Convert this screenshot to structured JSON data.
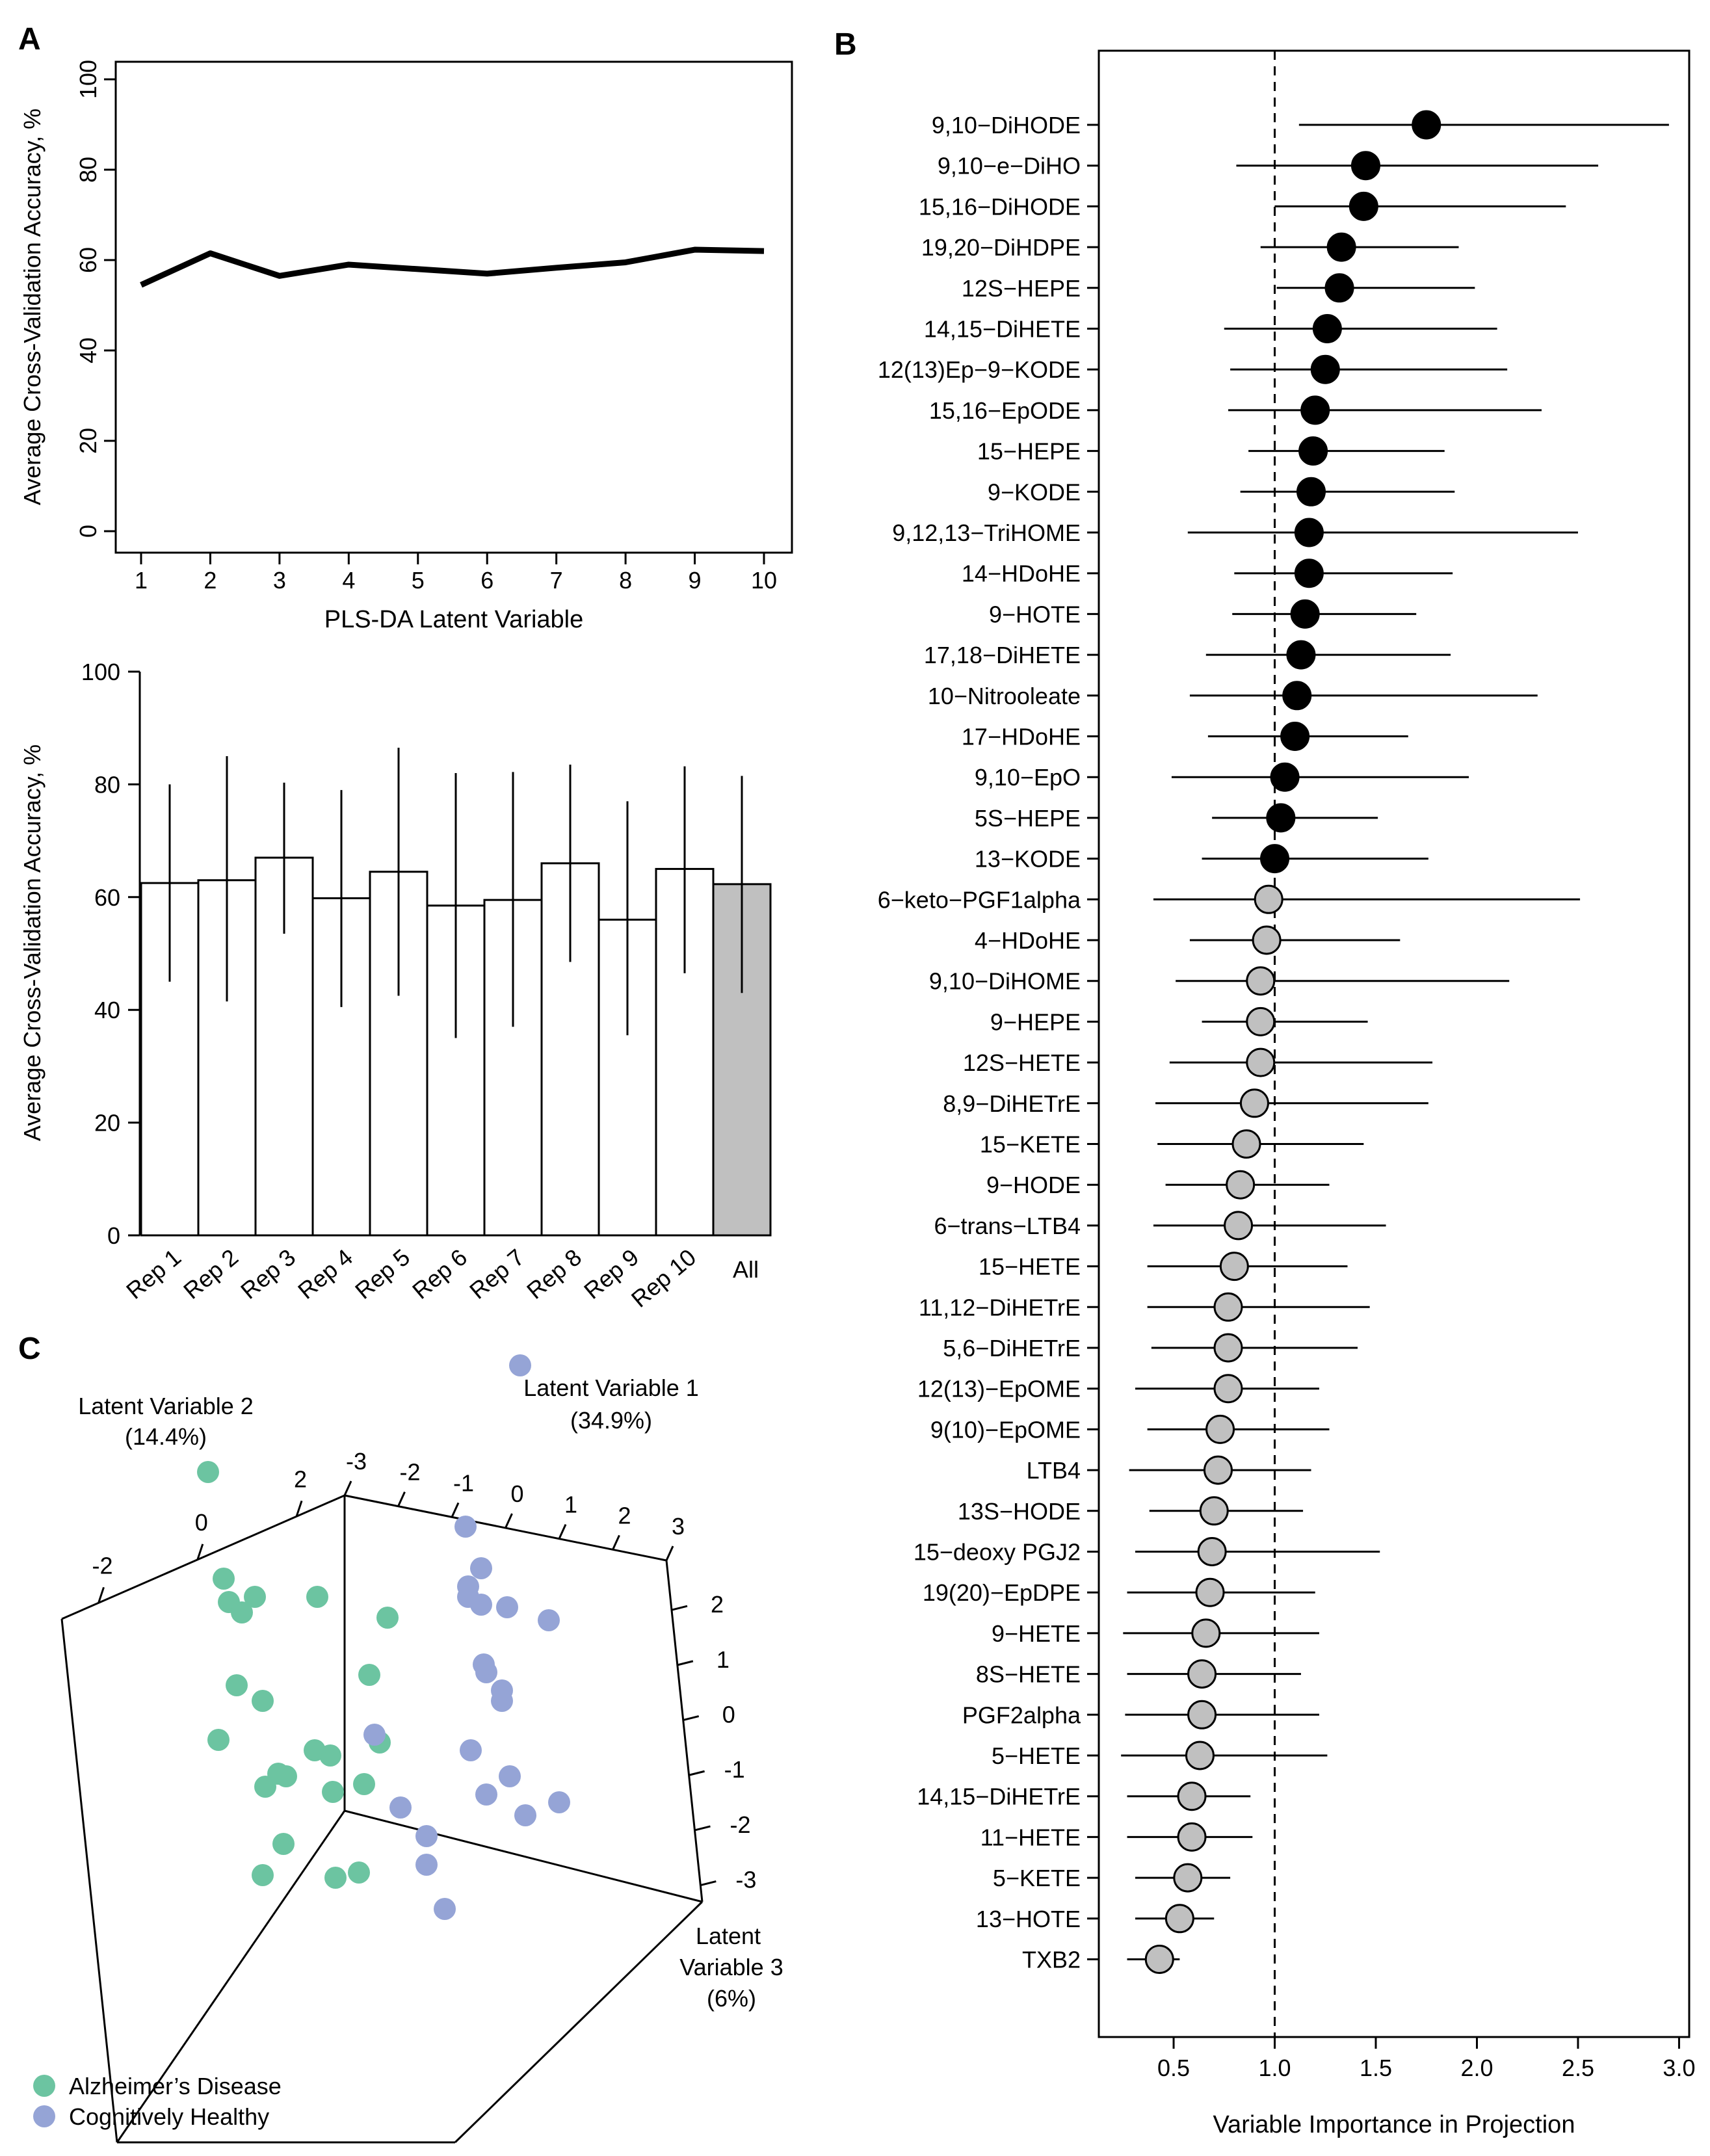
{
  "figure": {
    "panel_labels": [
      "A",
      "B",
      "C"
    ]
  },
  "chart_data": [
    {
      "id": "A-top",
      "type": "line",
      "title": "",
      "xlabel": "PLS-DA Latent Variable",
      "ylabel": "Average Cross-Validation Accuracy, %",
      "x": [
        1,
        2,
        3,
        4,
        5,
        6,
        7,
        8,
        9,
        10
      ],
      "values": [
        54.5,
        61.5,
        56.5,
        59,
        58,
        57,
        58.3,
        59.5,
        62.3,
        62
      ],
      "xticks": [
        "1",
        "2",
        "3",
        "4",
        "5",
        "6",
        "7",
        "8",
        "9",
        "10"
      ],
      "yticks": [
        "0",
        "20",
        "40",
        "60",
        "80",
        "100"
      ],
      "ylim": [
        0,
        100
      ],
      "color": "#000000"
    },
    {
      "id": "A-bottom",
      "type": "bar",
      "xlabel": "",
      "ylabel": "Average Cross-Validation Accuracy, %",
      "categories": [
        "Rep 1",
        "Rep 2",
        "Rep 3",
        "Rep 4",
        "Rep 5",
        "Rep 6",
        "Rep 7",
        "Rep 8",
        "Rep 9",
        "Rep 10",
        "All"
      ],
      "values": [
        62.5,
        63,
        67,
        59.8,
        64.5,
        58.5,
        59.5,
        66,
        56,
        65,
        62.3
      ],
      "error_low": [
        45,
        41.5,
        53.5,
        40.5,
        42.5,
        35,
        37,
        48.5,
        35.5,
        46.5,
        43
      ],
      "error_high": [
        80,
        85,
        80.3,
        79,
        86.5,
        82,
        82.2,
        83.5,
        77,
        83.2,
        81.5
      ],
      "fill": [
        "#ffffff",
        "#ffffff",
        "#ffffff",
        "#ffffff",
        "#ffffff",
        "#ffffff",
        "#ffffff",
        "#ffffff",
        "#ffffff",
        "#ffffff",
        "#c0c0c0"
      ],
      "yticks": [
        "0",
        "20",
        "40",
        "60",
        "80",
        "100"
      ],
      "ylim": [
        0,
        100
      ]
    },
    {
      "id": "B",
      "type": "scatter",
      "subtype": "dot-with-interval",
      "xlabel": "Variable Importance in Projection",
      "xticks": [
        "0.5",
        "1.0",
        "1.5",
        "2.0",
        "2.5",
        "3.0"
      ],
      "xlim": [
        0.13,
        3.05
      ],
      "reference_line": 1.0,
      "colors": {
        "significant": "#000000",
        "non_significant": "#c0c0c0"
      },
      "variables": [
        {
          "name": "9,10−DiHODE",
          "vip": 1.75,
          "lo": 1.12,
          "hi": 2.95,
          "sig": true
        },
        {
          "name": "9,10−e−DiHO",
          "vip": 1.45,
          "lo": 0.81,
          "hi": 2.6,
          "sig": true
        },
        {
          "name": "15,16−DiHODE",
          "vip": 1.44,
          "lo": 1.0,
          "hi": 2.44,
          "sig": true
        },
        {
          "name": "19,20−DiHDPE",
          "vip": 1.33,
          "lo": 0.93,
          "hi": 1.91,
          "sig": true
        },
        {
          "name": "12S−HEPE",
          "vip": 1.32,
          "lo": 1.01,
          "hi": 1.99,
          "sig": true
        },
        {
          "name": "14,15−DiHETE",
          "vip": 1.26,
          "lo": 0.75,
          "hi": 2.1,
          "sig": true
        },
        {
          "name": "12(13)Ep−9−KODE",
          "vip": 1.25,
          "lo": 0.78,
          "hi": 2.15,
          "sig": true
        },
        {
          "name": "15,16−EpODE",
          "vip": 1.2,
          "lo": 0.77,
          "hi": 2.32,
          "sig": true
        },
        {
          "name": "15−HEPE",
          "vip": 1.19,
          "lo": 0.87,
          "hi": 1.84,
          "sig": true
        },
        {
          "name": "9−KODE",
          "vip": 1.18,
          "lo": 0.83,
          "hi": 1.89,
          "sig": true
        },
        {
          "name": "9,12,13−TriHOME",
          "vip": 1.17,
          "lo": 0.57,
          "hi": 2.5,
          "sig": true
        },
        {
          "name": "14−HDoHE",
          "vip": 1.17,
          "lo": 0.8,
          "hi": 1.88,
          "sig": true
        },
        {
          "name": "9−HOTE",
          "vip": 1.15,
          "lo": 0.79,
          "hi": 1.7,
          "sig": true
        },
        {
          "name": "17,18−DiHETE",
          "vip": 1.13,
          "lo": 0.66,
          "hi": 1.87,
          "sig": true
        },
        {
          "name": "10−Nitrooleate",
          "vip": 1.11,
          "lo": 0.58,
          "hi": 2.3,
          "sig": true
        },
        {
          "name": "17−HDoHE",
          "vip": 1.1,
          "lo": 0.67,
          "hi": 1.66,
          "sig": true
        },
        {
          "name": "9,10−EpO",
          "vip": 1.05,
          "lo": 0.49,
          "hi": 1.96,
          "sig": true
        },
        {
          "name": "5S−HEPE",
          "vip": 1.03,
          "lo": 0.69,
          "hi": 1.51,
          "sig": true
        },
        {
          "name": "13−KODE",
          "vip": 1.0,
          "lo": 0.64,
          "hi": 1.76,
          "sig": true
        },
        {
          "name": "6−keto−PGF1alpha",
          "vip": 0.97,
          "lo": 0.4,
          "hi": 2.51,
          "sig": false
        },
        {
          "name": "4−HDoHE",
          "vip": 0.96,
          "lo": 0.58,
          "hi": 1.62,
          "sig": false
        },
        {
          "name": "9,10−DiHOME",
          "vip": 0.93,
          "lo": 0.51,
          "hi": 2.16,
          "sig": false
        },
        {
          "name": "9−HEPE",
          "vip": 0.93,
          "lo": 0.64,
          "hi": 1.46,
          "sig": false
        },
        {
          "name": "12S−HETE",
          "vip": 0.93,
          "lo": 0.48,
          "hi": 1.78,
          "sig": false
        },
        {
          "name": "8,9−DiHETrE",
          "vip": 0.9,
          "lo": 0.41,
          "hi": 1.76,
          "sig": false
        },
        {
          "name": "15−KETE",
          "vip": 0.86,
          "lo": 0.42,
          "hi": 1.44,
          "sig": false
        },
        {
          "name": "9−HODE",
          "vip": 0.83,
          "lo": 0.46,
          "hi": 1.27,
          "sig": false
        },
        {
          "name": "6−trans−LTB4",
          "vip": 0.82,
          "lo": 0.4,
          "hi": 1.55,
          "sig": false
        },
        {
          "name": "15−HETE",
          "vip": 0.8,
          "lo": 0.37,
          "hi": 1.36,
          "sig": false
        },
        {
          "name": "11,12−DiHETrE",
          "vip": 0.77,
          "lo": 0.37,
          "hi": 1.47,
          "sig": false
        },
        {
          "name": "5,6−DiHETrE",
          "vip": 0.77,
          "lo": 0.39,
          "hi": 1.41,
          "sig": false
        },
        {
          "name": "12(13)−EpOME",
          "vip": 0.77,
          "lo": 0.31,
          "hi": 1.22,
          "sig": false
        },
        {
          "name": "9(10)−EpOME",
          "vip": 0.73,
          "lo": 0.37,
          "hi": 1.27,
          "sig": false
        },
        {
          "name": "LTB4",
          "vip": 0.72,
          "lo": 0.28,
          "hi": 1.18,
          "sig": false
        },
        {
          "name": "13S−HODE",
          "vip": 0.7,
          "lo": 0.38,
          "hi": 1.14,
          "sig": false
        },
        {
          "name": "15−deoxy PGJ2",
          "vip": 0.69,
          "lo": 0.31,
          "hi": 1.52,
          "sig": false
        },
        {
          "name": "19(20)−EpDPE",
          "vip": 0.68,
          "lo": 0.27,
          "hi": 1.2,
          "sig": false
        },
        {
          "name": "9−HETE",
          "vip": 0.66,
          "lo": 0.25,
          "hi": 1.22,
          "sig": false
        },
        {
          "name": "8S−HETE",
          "vip": 0.64,
          "lo": 0.27,
          "hi": 1.13,
          "sig": false
        },
        {
          "name": "PGF2alpha",
          "vip": 0.64,
          "lo": 0.26,
          "hi": 1.22,
          "sig": false
        },
        {
          "name": "5−HETE",
          "vip": 0.63,
          "lo": 0.24,
          "hi": 1.26,
          "sig": false
        },
        {
          "name": "14,15−DiHETrE",
          "vip": 0.59,
          "lo": 0.27,
          "hi": 0.88,
          "sig": false
        },
        {
          "name": "11−HETE",
          "vip": 0.59,
          "lo": 0.27,
          "hi": 0.89,
          "sig": false
        },
        {
          "name": "5−KETE",
          "vip": 0.57,
          "lo": 0.31,
          "hi": 0.78,
          "sig": false
        },
        {
          "name": "13−HOTE",
          "vip": 0.53,
          "lo": 0.31,
          "hi": 0.7,
          "sig": false
        },
        {
          "name": "TXB2",
          "vip": 0.43,
          "lo": 0.27,
          "hi": 0.53,
          "sig": false
        }
      ]
    },
    {
      "id": "C",
      "type": "scatter",
      "subtype": "3d-scores",
      "axes": {
        "lv1": {
          "label_line1": "Latent Variable 1",
          "label_line2": "(34.9%)",
          "ticks": [
            "-3",
            "-2",
            "-1",
            "0",
            "1",
            "2",
            "3"
          ]
        },
        "lv2": {
          "label_line1": "Latent Variable 2",
          "label_line2": "(14.4%)",
          "ticks": [
            "-2",
            "0",
            "2"
          ]
        },
        "lv3": {
          "label_line1": "Latent",
          "label_line2": "Variable 3",
          "label_line3": "(6%)",
          "ticks": [
            "2",
            "1",
            "0",
            "-1",
            "-2",
            "-3"
          ]
        }
      },
      "legend": [
        {
          "label": "Alzheimer’s Disease",
          "color": "#6cc4a1"
        },
        {
          "label": "Cognitively Healthy",
          "color": "#95a4d6"
        }
      ],
      "series": [
        {
          "name": "Alzheimer’s Disease",
          "points_projected": [
            [
              0.15,
              0.06
            ],
            [
              0.23,
              0.56
            ],
            [
              0.28,
              0.6
            ],
            [
              0.26,
              0.88
            ],
            [
              0.62,
              1.15
            ],
            [
              0.56,
              1.13
            ],
            [
              0.45,
              1.23
            ],
            [
              0.77,
              0.84
            ],
            [
              0.57,
              0.54
            ],
            [
              0.36,
              0.94
            ],
            [
              0.75,
              1.26
            ],
            [
              0.81,
              1.1
            ],
            [
              0.84,
              0.62
            ],
            [
              0.64,
              1.62
            ],
            [
              0.44,
              1.49
            ],
            [
              0.73,
              1.6
            ],
            [
              0.63,
              1.29
            ],
            [
              0.42,
              1.22
            ],
            [
              0.37,
              1.27
            ],
            [
              0.33,
              0.54
            ],
            [
              0.36,
              1.61
            ],
            [
              0.21,
              0.47
            ],
            [
              0.19,
              1.09
            ]
          ]
        },
        {
          "name": "Cognitively Healthy",
          "points_projected": [
            [
              1.35,
              -0.35
            ],
            [
              1.14,
              0.27
            ],
            [
              1.15,
              0.54
            ],
            [
              0.99,
              1.46
            ],
            [
              1.22,
              0.83
            ],
            [
              1.28,
              0.94
            ],
            [
              1.28,
              0.9
            ],
            [
              1.31,
              1.23
            ],
            [
              1.3,
              0.58
            ],
            [
              1.46,
              0.63
            ],
            [
              1.5,
              1.33
            ],
            [
              1.21,
              0.8
            ],
            [
              1.2,
              0.57
            ],
            [
              1.15,
              0.5
            ],
            [
              1.22,
              1.3
            ],
            [
              1.16,
              1.13
            ],
            [
              1.37,
              1.38
            ],
            [
              1.06,
              1.74
            ],
            [
              0.79,
              1.07
            ],
            [
              0.89,
              1.35
            ],
            [
              0.99,
              1.57
            ],
            [
              1.2,
              0.43
            ]
          ]
        }
      ]
    }
  ]
}
